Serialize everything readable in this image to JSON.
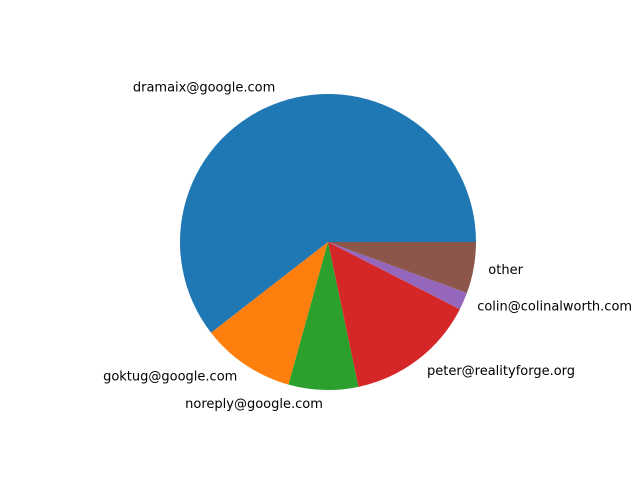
{
  "chart_data": {
    "type": "pie",
    "title": "",
    "xlabel": "",
    "ylabel": "",
    "start_angle_deg": 0,
    "direction": "counterclockwise",
    "slices": [
      {
        "label": "dramaix@google.com",
        "value": 60.5,
        "color": "#1f77b4"
      },
      {
        "label": "goktug@google.com",
        "value": 10.2,
        "color": "#ff7f0e"
      },
      {
        "label": "noreply@google.com",
        "value": 7.6,
        "color": "#2ca02c"
      },
      {
        "label": "peter@realityforge.org",
        "value": 14.2,
        "color": "#d62728"
      },
      {
        "label": "colin@colinalworth.com",
        "value": 1.9,
        "color": "#9467bd"
      },
      {
        "label": "other",
        "value": 5.6,
        "color": "#8c564b"
      }
    ]
  }
}
